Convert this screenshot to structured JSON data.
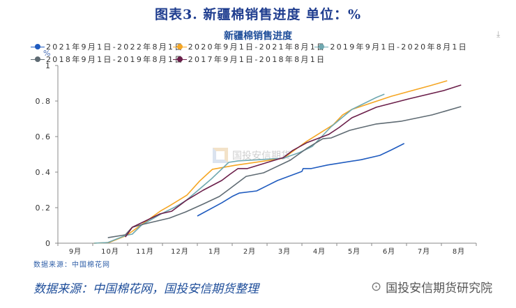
{
  "figure_title": "图表3.  新疆棉销售进度    单位：%",
  "download_icon": "download-icon",
  "watermark": "国投安信期货",
  "source_small": "数据来源：中国棉花网",
  "footer_note": "数据来源：中国棉花网，国投安信期货整理",
  "brand": "国投安信期货研究院",
  "chart_data": {
    "type": "line",
    "title": "新疆棉销售进度",
    "ylabel": "%",
    "xlabel": "",
    "ylim": [
      0,
      1
    ],
    "yticks": [
      "0",
      "0.2",
      "0.4",
      "0.6",
      "0.8",
      "1"
    ],
    "xticks": [
      "9月",
      "10月",
      "11月",
      "12月",
      "1月",
      "2月",
      "3月",
      "4月",
      "5月",
      "6月",
      "7月",
      "8月"
    ],
    "grid": false,
    "legend": "top",
    "series": [
      {
        "name": "2021年9月1日-2022年8月1日",
        "color": "#1f5bbf",
        "points": [
          [
            "01-01",
            0.153
          ],
          [
            "01-22",
            0.227
          ],
          [
            "01-31",
            0.263
          ],
          [
            "02-07",
            0.282
          ],
          [
            "02-22",
            0.294
          ],
          [
            "03-10",
            0.353
          ],
          [
            "04-01",
            0.404
          ],
          [
            "04-02",
            0.42
          ],
          [
            "04-09",
            0.42
          ],
          [
            "04-23",
            0.44
          ],
          [
            "05-22",
            0.47
          ],
          [
            "06-08",
            0.494
          ],
          [
            "06-18",
            0.525
          ],
          [
            "06-29",
            0.561
          ]
        ]
      },
      {
        "name": "2020年9月1日-2021年8月1日",
        "color": "#f5a623",
        "points": [
          [
            "10-02",
            0
          ],
          [
            "10-15",
            0.004
          ],
          [
            "10-30",
            0.043
          ],
          [
            "11-29",
            0.18
          ],
          [
            "12-07",
            0.21
          ],
          [
            "12-22",
            0.27
          ],
          [
            "01-03",
            0.35
          ],
          [
            "01-14",
            0.416
          ],
          [
            "02-04",
            0.439
          ],
          [
            "03-15",
            0.478
          ],
          [
            "04-05",
            0.573
          ],
          [
            "04-28",
            0.667
          ],
          [
            "05-06",
            0.722
          ],
          [
            "05-14",
            0.753
          ],
          [
            "06-18",
            0.827
          ],
          [
            "07-21",
            0.886
          ],
          [
            "08-06",
            0.914
          ]
        ]
      },
      {
        "name": "2019年9月1日-2020年8月1日",
        "color": "#6fa8b0",
        "points": [
          [
            "10-02",
            0
          ],
          [
            "10-14",
            0.004
          ],
          [
            "10-29",
            0.043
          ],
          [
            "11-05",
            0.051
          ],
          [
            "11-13",
            0.102
          ],
          [
            "11-30",
            0.165
          ],
          [
            "12-12",
            0.204
          ],
          [
            "12-21",
            0.239
          ],
          [
            "01-01",
            0.294
          ],
          [
            "01-13",
            0.361
          ],
          [
            "01-28",
            0.455
          ],
          [
            "02-06",
            0.463
          ],
          [
            "03-15",
            0.478
          ],
          [
            "03-29",
            0.51
          ],
          [
            "04-10",
            0.545
          ],
          [
            "04-26",
            0.655
          ],
          [
            "05-14",
            0.753
          ],
          [
            "06-05",
            0.82
          ],
          [
            "06-12",
            0.839
          ]
        ]
      },
      {
        "name": "2018年9月1日-2019年8月1日",
        "color": "#5f6b73",
        "points": [
          [
            "10-14",
            0.031
          ],
          [
            "10-29",
            0.047
          ],
          [
            "11-05",
            0.09
          ],
          [
            "11-14",
            0.106
          ],
          [
            "12-07",
            0.141
          ],
          [
            "12-21",
            0.176
          ],
          [
            "01-06",
            0.22
          ],
          [
            "01-20",
            0.263
          ],
          [
            "01-28",
            0.302
          ],
          [
            "02-13",
            0.376
          ],
          [
            "02-28",
            0.396
          ],
          [
            "03-21",
            0.467
          ],
          [
            "04-05",
            0.533
          ],
          [
            "04-19",
            0.588
          ],
          [
            "04-26",
            0.592
          ],
          [
            "05-12",
            0.635
          ],
          [
            "05-22",
            0.651
          ],
          [
            "06-05",
            0.671
          ],
          [
            "06-26",
            0.686
          ],
          [
            "07-23",
            0.722
          ],
          [
            "08-18",
            0.769
          ]
        ]
      },
      {
        "name": "2017年9月1日-2018年8月1日",
        "color": "#6b1f4a",
        "points": [
          [
            "10-29",
            0.035
          ],
          [
            "11-05",
            0.09
          ],
          [
            "11-29",
            0.165
          ],
          [
            "12-09",
            0.18
          ],
          [
            "12-21",
            0.239
          ],
          [
            "01-06",
            0.298
          ],
          [
            "01-22",
            0.353
          ],
          [
            "01-29",
            0.388
          ],
          [
            "02-06",
            0.42
          ],
          [
            "02-14",
            0.42
          ],
          [
            "03-15",
            0.482
          ],
          [
            "03-23",
            0.522
          ],
          [
            "04-05",
            0.565
          ],
          [
            "04-24",
            0.612
          ],
          [
            "05-03",
            0.651
          ],
          [
            "05-14",
            0.706
          ],
          [
            "06-05",
            0.765
          ],
          [
            "07-03",
            0.812
          ],
          [
            "08-03",
            0.859
          ],
          [
            "08-18",
            0.89
          ]
        ]
      }
    ]
  }
}
